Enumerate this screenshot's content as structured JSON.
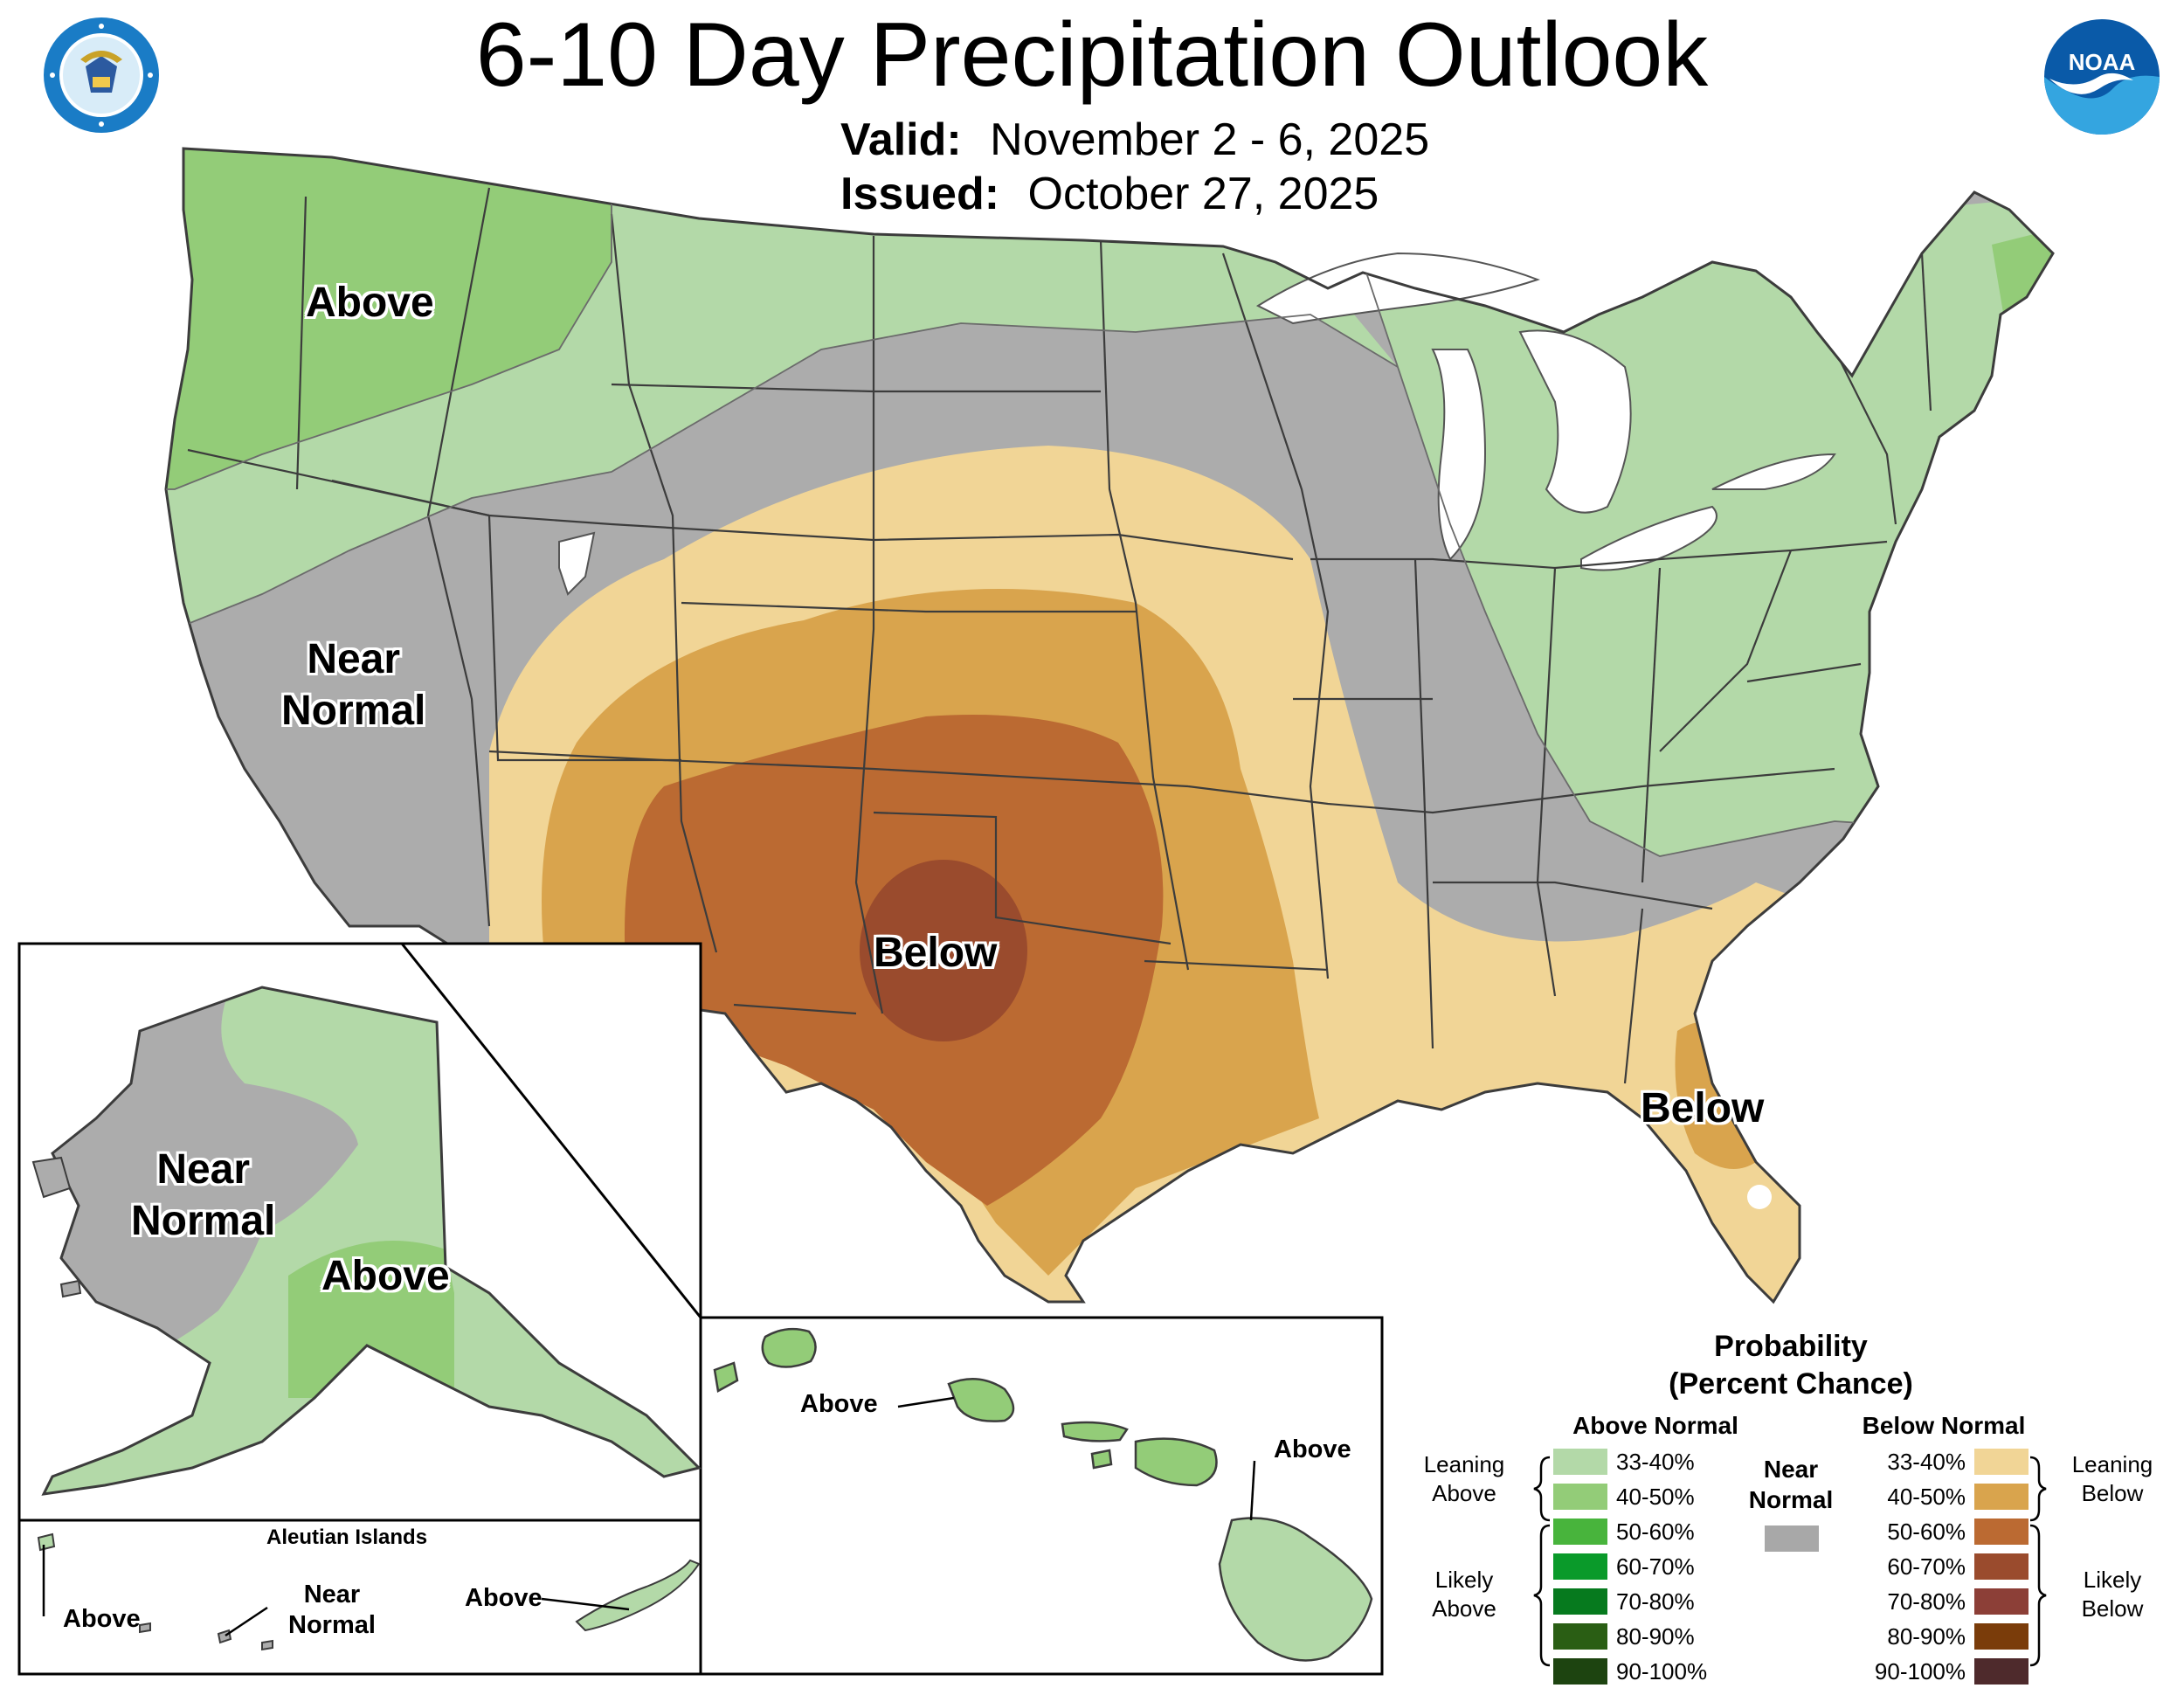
{
  "header": {
    "title": "6-10 Day Precipitation Outlook",
    "valid_label": "Valid:",
    "valid_value": "November 2 - 6, 2025",
    "issued_label": "Issued:",
    "issued_value": "October 27, 2025"
  },
  "logos": {
    "doc_seal_text": "DEPARTMENT OF COMMERCE · UNITED STATES OF AMERICA",
    "noaa_text": "NOAA"
  },
  "map_labels": {
    "conus_above": "Above",
    "conus_near_1": "Near",
    "conus_near_2": "Normal",
    "conus_below_center": "Below",
    "conus_below_florida": "Below"
  },
  "alaska": {
    "near_1": "Near",
    "near_2": "Normal",
    "above": "Above"
  },
  "aleutians": {
    "title": "Aleutian Islands",
    "above_west": "Above",
    "near_1": "Near",
    "near_2": "Normal",
    "above_east": "Above"
  },
  "hawaii": {
    "above_west": "Above",
    "above_east": "Above"
  },
  "legend": {
    "title_1": "Probability",
    "title_2": "(Percent Chance)",
    "above_header": "Above Normal",
    "below_header": "Below Normal",
    "near_1": "Near",
    "near_2": "Normal",
    "leaning_above_1": "Leaning",
    "leaning_above_2": "Above",
    "likely_above_1": "Likely",
    "likely_above_2": "Above",
    "leaning_below_1": "Leaning",
    "leaning_below_2": "Below",
    "likely_below_1": "Likely",
    "likely_below_2": "Below",
    "above_items": [
      {
        "label": "33-40%",
        "color": "#b3d9a8"
      },
      {
        "label": "40-50%",
        "color": "#93cc78"
      },
      {
        "label": "50-60%",
        "color": "#48b43c"
      },
      {
        "label": "60-70%",
        "color": "#0a9a2a"
      },
      {
        "label": "70-80%",
        "color": "#067a1e"
      },
      {
        "label": "80-90%",
        "color": "#2a5e14"
      },
      {
        "label": "90-100%",
        "color": "#1d4410"
      }
    ],
    "below_items": [
      {
        "label": "33-40%",
        "color": "#f1d596"
      },
      {
        "label": "40-50%",
        "color": "#d9a44d"
      },
      {
        "label": "50-60%",
        "color": "#bb6a32"
      },
      {
        "label": "60-70%",
        "color": "#9a4b2d"
      },
      {
        "label": "70-80%",
        "color": "#8c3f37"
      },
      {
        "label": "80-90%",
        "color": "#7a3c0a"
      },
      {
        "label": "90-100%",
        "color": "#4e2a2c"
      }
    ],
    "near_color": "#a8a8a8"
  },
  "colors": {
    "near_normal": "#acacac",
    "above_33": "#b3d9a8",
    "above_40": "#93cc78",
    "below_33": "#f1d596",
    "below_40": "#d9a44d",
    "below_50": "#bb6a32",
    "below_60": "#9a4b2d",
    "border": "#3c3c3c"
  }
}
